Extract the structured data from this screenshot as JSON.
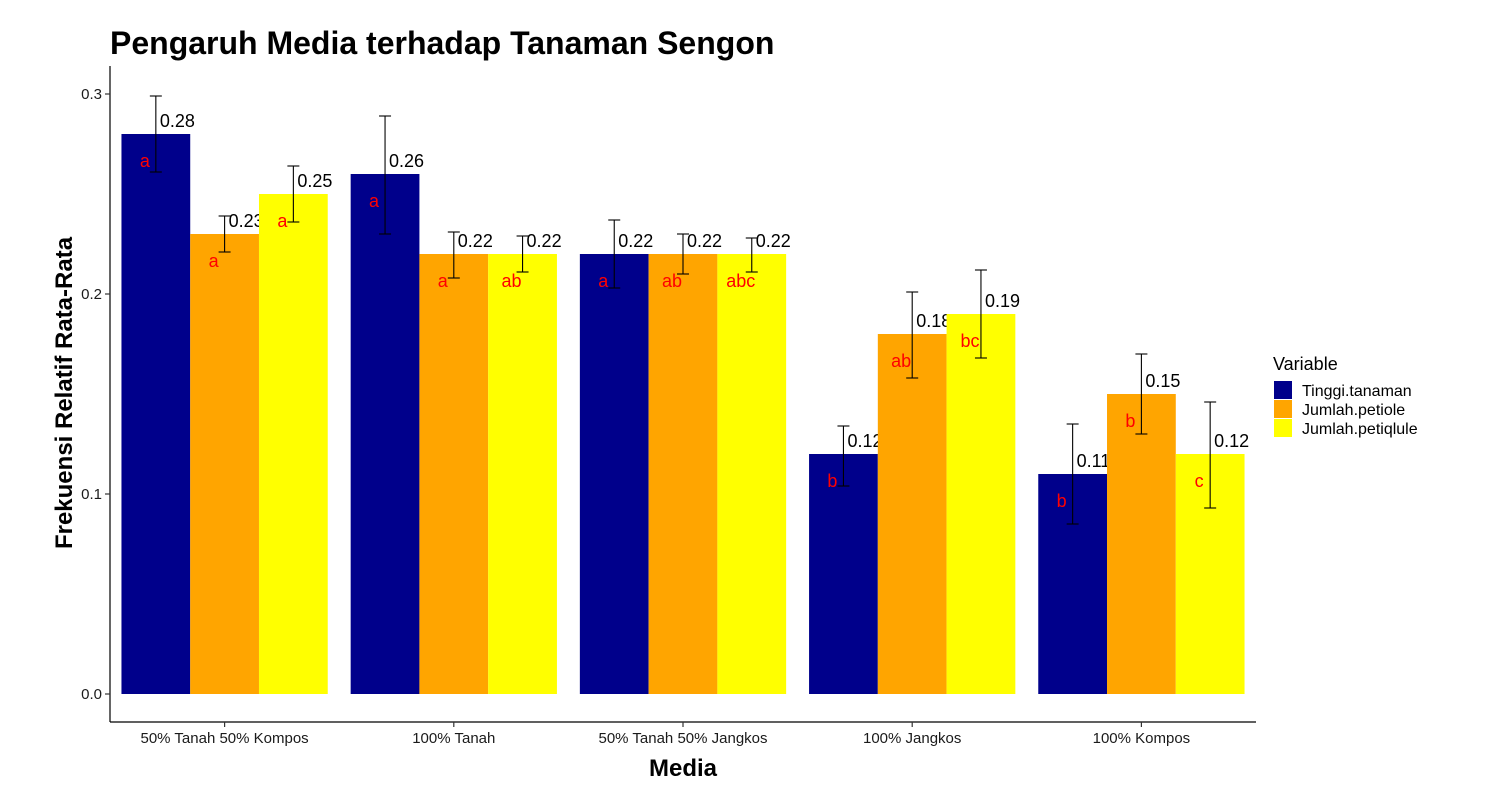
{
  "chart_data": {
    "type": "bar",
    "title": "Pengaruh Media terhadap Tanaman Sengon",
    "xlabel": "Media",
    "ylabel": "Frekuensi Relatif Rata-Rata",
    "ylim": [
      -0.014,
      0.314
    ],
    "yticks": [
      0.0,
      0.1,
      0.2,
      0.3
    ],
    "ytick_labels": [
      "0.0",
      "0.1",
      "0.2",
      "0.3"
    ],
    "categories": [
      "50% Tanah 50% Kompos",
      "100% Tanah",
      "50% Tanah 50% Jangkos",
      "100% Jangkos",
      "100% Kompos"
    ],
    "grid": false,
    "legend": {
      "title": "Variable",
      "position": "right"
    },
    "letter_color": "#ff0000",
    "series": [
      {
        "name": "Tinggi.tanaman",
        "color": "#00008b",
        "values": [
          0.28,
          0.26,
          0.22,
          0.12,
          0.11
        ],
        "value_labels": [
          "0.28",
          "0.26",
          "0.22",
          "0.12",
          "0.11"
        ],
        "err_low": [
          0.261,
          0.23,
          0.203,
          0.104,
          0.085
        ],
        "err_high": [
          0.299,
          0.289,
          0.237,
          0.134,
          0.135
        ],
        "letters": [
          "a",
          "a",
          "a",
          "b",
          "b"
        ]
      },
      {
        "name": "Jumlah.petiole",
        "color": "#ffa500",
        "values": [
          0.23,
          0.22,
          0.22,
          0.18,
          0.15
        ],
        "value_labels": [
          "0.23",
          "0.22",
          "0.22",
          "0.18",
          "0.15"
        ],
        "err_low": [
          0.221,
          0.208,
          0.21,
          0.158,
          0.13
        ],
        "err_high": [
          0.239,
          0.231,
          0.23,
          0.201,
          0.17
        ],
        "letters": [
          "a",
          "a",
          "ab",
          "ab",
          "b"
        ]
      },
      {
        "name": "Jumlah.petiqlule",
        "color": "#ffff00",
        "values": [
          0.25,
          0.22,
          0.22,
          0.19,
          0.12
        ],
        "value_labels": [
          "0.25",
          "0.22",
          "0.22",
          "0.19",
          "0.12"
        ],
        "err_low": [
          0.236,
          0.211,
          0.211,
          0.168,
          0.093
        ],
        "err_high": [
          0.264,
          0.229,
          0.228,
          0.212,
          0.146
        ],
        "letters": [
          "a",
          "ab",
          "abc",
          "bc",
          "c"
        ]
      }
    ]
  }
}
